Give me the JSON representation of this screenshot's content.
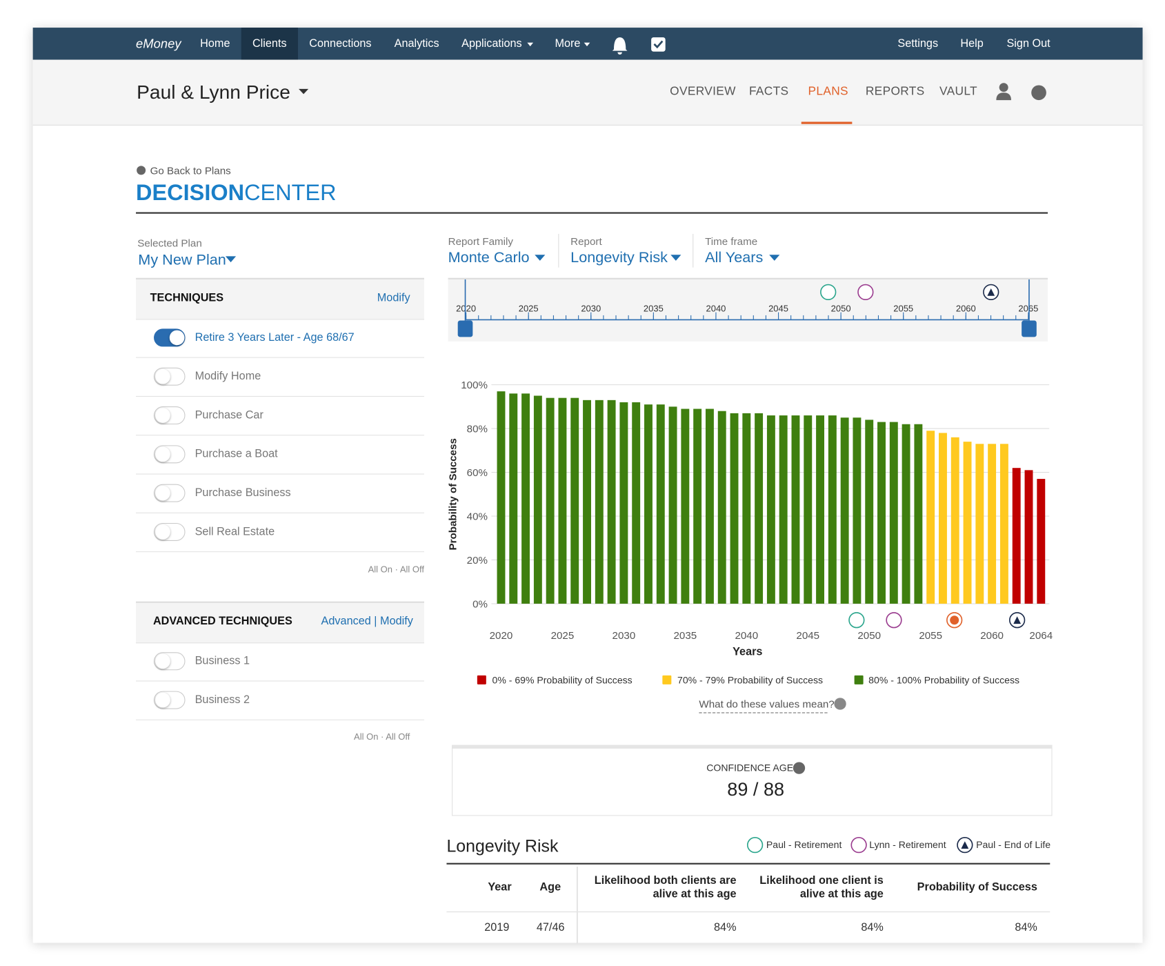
{
  "nav": {
    "brand": "eMoney",
    "items": [
      "Home",
      "Clients",
      "Connections",
      "Analytics",
      "Applications",
      "More"
    ],
    "right": [
      "Settings",
      "Help",
      "Sign Out"
    ]
  },
  "client": {
    "name": "Paul & Lynn Price",
    "tabs": [
      "OVERVIEW",
      "FACTS",
      "PLANS",
      "REPORTS",
      "VAULT"
    ]
  },
  "back_link": "Go Back to Plans",
  "heading": {
    "bold": "DECISION",
    "normal": "CENTER"
  },
  "plan": {
    "label": "Selected Plan",
    "value": "My New Plan"
  },
  "techniques": {
    "title": "TECHNIQUES",
    "action": "Modify",
    "items": [
      {
        "label": "Retire 3 Years Later - Age 68/67",
        "on": true
      },
      {
        "label": "Modify Home",
        "on": false
      },
      {
        "label": "Purchase Car",
        "on": false
      },
      {
        "label": "Purchase a Boat",
        "on": false
      },
      {
        "label": "Purchase Business",
        "on": false
      },
      {
        "label": "Sell Real Estate",
        "on": false
      }
    ],
    "footer": "All On · All Off"
  },
  "advanced": {
    "title": "ADVANCED TECHNIQUES",
    "action": "Advanced | Modify",
    "items": [
      {
        "label": "Business 1",
        "on": false
      },
      {
        "label": "Business 2",
        "on": false
      }
    ],
    "footer": "All On · All Off"
  },
  "filters": [
    {
      "label": "Report Family",
      "value": "Monte Carlo"
    },
    {
      "label": "Report",
      "value": "Longevity Risk"
    },
    {
      "label": "Time frame",
      "value": "All Years"
    }
  ],
  "timeline": {
    "ticks": [
      2020,
      2025,
      2030,
      2035,
      2040,
      2045,
      2050,
      2055,
      2060,
      2065
    ]
  },
  "chart_data": {
    "type": "bar",
    "y_label": "Probability of Success",
    "x_label": "Years",
    "categories": [
      2020,
      2021,
      2022,
      2023,
      2024,
      2025,
      2026,
      2027,
      2028,
      2029,
      2030,
      2031,
      2032,
      2033,
      2034,
      2035,
      2036,
      2037,
      2038,
      2039,
      2040,
      2041,
      2042,
      2043,
      2044,
      2045,
      2046,
      2047,
      2048,
      2049,
      2050,
      2051,
      2052,
      2053,
      2054,
      2055,
      2056,
      2057,
      2058,
      2059,
      2060,
      2061,
      2062,
      2063,
      2064
    ],
    "series": [
      {
        "name": "0% - 69% Probability of Success",
        "color": "#c00000",
        "values": [
          null,
          null,
          null,
          null,
          null,
          null,
          null,
          null,
          null,
          null,
          null,
          null,
          null,
          null,
          null,
          null,
          null,
          null,
          null,
          null,
          null,
          null,
          null,
          null,
          null,
          null,
          null,
          null,
          null,
          null,
          null,
          null,
          null,
          null,
          null,
          null,
          null,
          null,
          null,
          null,
          null,
          null,
          62,
          61,
          57
        ]
      },
      {
        "name": "70% - 79% Probability of Success",
        "color": "#ffc91f",
        "values": [
          null,
          null,
          null,
          null,
          null,
          null,
          null,
          null,
          null,
          null,
          null,
          null,
          null,
          null,
          null,
          null,
          null,
          null,
          null,
          null,
          null,
          null,
          null,
          null,
          null,
          null,
          null,
          null,
          null,
          null,
          null,
          null,
          null,
          null,
          null,
          79,
          78,
          76,
          74,
          73,
          73,
          73,
          null,
          null,
          null
        ]
      },
      {
        "name": "80% - 100% Probability of Success",
        "color": "#3f7f0f",
        "values": [
          97,
          96,
          96,
          95,
          94,
          94,
          94,
          93,
          93,
          93,
          92,
          92,
          91,
          91,
          90,
          89,
          89,
          89,
          88,
          87,
          87,
          87,
          86,
          86,
          86,
          86,
          86,
          86,
          85,
          85,
          84,
          83,
          83,
          82,
          82,
          null,
          null,
          null,
          null,
          null,
          null,
          null,
          null,
          null,
          null
        ]
      }
    ],
    "ylim": [
      0,
      100
    ],
    "yticks": [
      {
        "value": 0,
        "label": "0%"
      },
      {
        "value": 20,
        "label": "20%"
      },
      {
        "value": 40,
        "label": "40%"
      },
      {
        "value": 60,
        "label": "60%"
      },
      {
        "value": 80,
        "label": "80%"
      },
      {
        "value": 100,
        "label": "100%"
      }
    ],
    "xticks": [
      2020,
      2025,
      2030,
      2035,
      2040,
      2045,
      2050,
      2055,
      2060,
      2064
    ],
    "grid": true,
    "help": "What do these values mean?"
  },
  "confidence": {
    "label": "CONFIDENCE AGE",
    "value": "89 / 88"
  },
  "table": {
    "title": "Longevity Risk",
    "legend": [
      "Paul - Retirement",
      "Lynn - Retirement",
      "Paul - End of Life"
    ],
    "columns": [
      "Year",
      "Age",
      "Likelihood both clients are alive at this age",
      "Likelihood one client is alive at this age",
      "Probability of Success"
    ],
    "rows": [
      [
        "2019",
        "47/46",
        "84%",
        "84%",
        "84%"
      ]
    ]
  }
}
